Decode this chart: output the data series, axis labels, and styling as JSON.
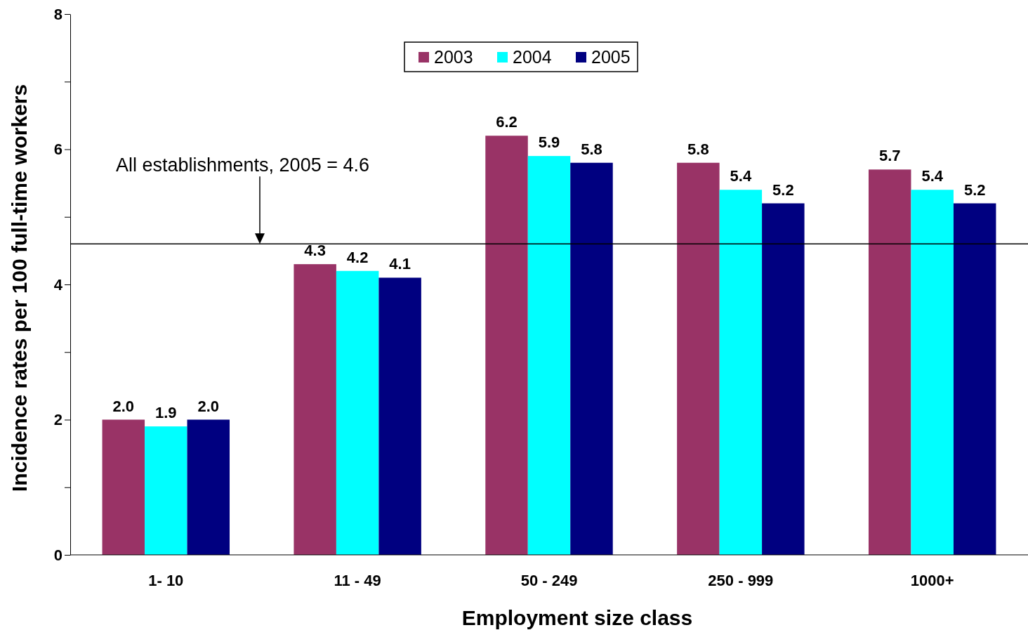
{
  "chart_data": {
    "type": "bar",
    "xlabel": "Employment size class",
    "ylabel": "Incidence rates per 100 full-time workers",
    "categories": [
      "1- 10",
      "11 - 49",
      "50 - 249",
      "250 - 999",
      "1000+"
    ],
    "series": [
      {
        "name": "2003",
        "color": "#993366",
        "values": [
          2.0,
          4.3,
          6.2,
          5.8,
          5.7
        ],
        "value_labels": [
          "2.0",
          "4.3",
          "6.2",
          "5.8",
          "5.7"
        ]
      },
      {
        "name": "2004",
        "color": "#00ffff",
        "values": [
          1.9,
          4.2,
          5.9,
          5.4,
          5.4
        ],
        "value_labels": [
          "1.9",
          "4.2",
          "5.9",
          "5.4",
          "5.4"
        ]
      },
      {
        "name": "2005",
        "color": "#000080",
        "values": [
          2.0,
          4.1,
          5.8,
          5.2,
          5.2
        ],
        "value_labels": [
          "2.0",
          "4.1",
          "5.8",
          "5.2",
          "5.2"
        ]
      }
    ],
    "ylim": [
      0,
      8
    ],
    "yticks": [
      0,
      {
        "value": 1,
        "label": null
      },
      2,
      {
        "value": 3,
        "label": null
      },
      4,
      {
        "value": 5,
        "label": null
      },
      6,
      {
        "value": 7,
        "label": null
      },
      8
    ],
    "ref_lines": [
      {
        "axis": "y",
        "value": 4.6,
        "color": "#000000"
      }
    ],
    "annotations": [
      "All establishments, 2005 = 4.6"
    ],
    "legend": "top",
    "grid": false
  }
}
